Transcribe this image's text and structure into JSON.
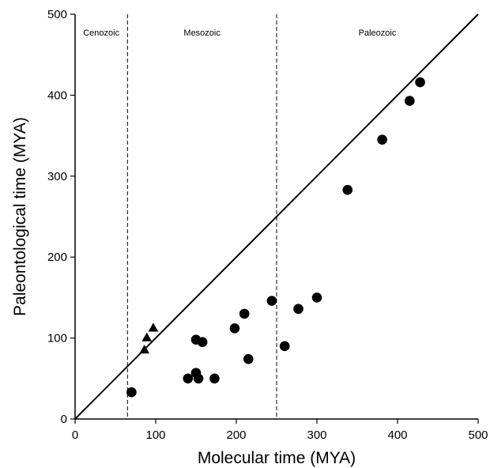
{
  "chart_data": {
    "type": "scatter",
    "xlabel": "Molecular time (MYA)",
    "ylabel": "Paleontological time (MYA)",
    "xlim": [
      0,
      500
    ],
    "ylim": [
      0,
      500
    ],
    "xticks": [
      "0",
      "100",
      "200",
      "300",
      "400",
      "500"
    ],
    "yticks": [
      "0",
      "100",
      "200",
      "300",
      "400",
      "500"
    ],
    "grid": false,
    "reference_line": {
      "from": [
        0,
        0
      ],
      "to": [
        500,
        500
      ]
    },
    "era_boundaries": [
      65,
      250
    ],
    "era_labels": [
      "Cenozoic",
      "Mesozoic",
      "Paleozoic"
    ],
    "series": [
      {
        "marker": "circle",
        "points": [
          [
            70,
            33
          ],
          [
            140,
            50
          ],
          [
            150,
            57
          ],
          [
            153,
            50
          ],
          [
            150,
            98
          ],
          [
            158,
            95
          ],
          [
            173,
            50
          ],
          [
            198,
            112
          ],
          [
            210,
            130
          ],
          [
            215,
            74
          ],
          [
            244,
            146
          ],
          [
            260,
            90
          ],
          [
            277,
            136
          ],
          [
            300,
            150
          ],
          [
            338,
            283
          ],
          [
            381,
            345
          ],
          [
            415,
            393
          ],
          [
            428,
            416
          ]
        ]
      },
      {
        "marker": "triangle",
        "points": [
          [
            86,
            85
          ],
          [
            89,
            100
          ],
          [
            97,
            112
          ]
        ]
      }
    ]
  }
}
